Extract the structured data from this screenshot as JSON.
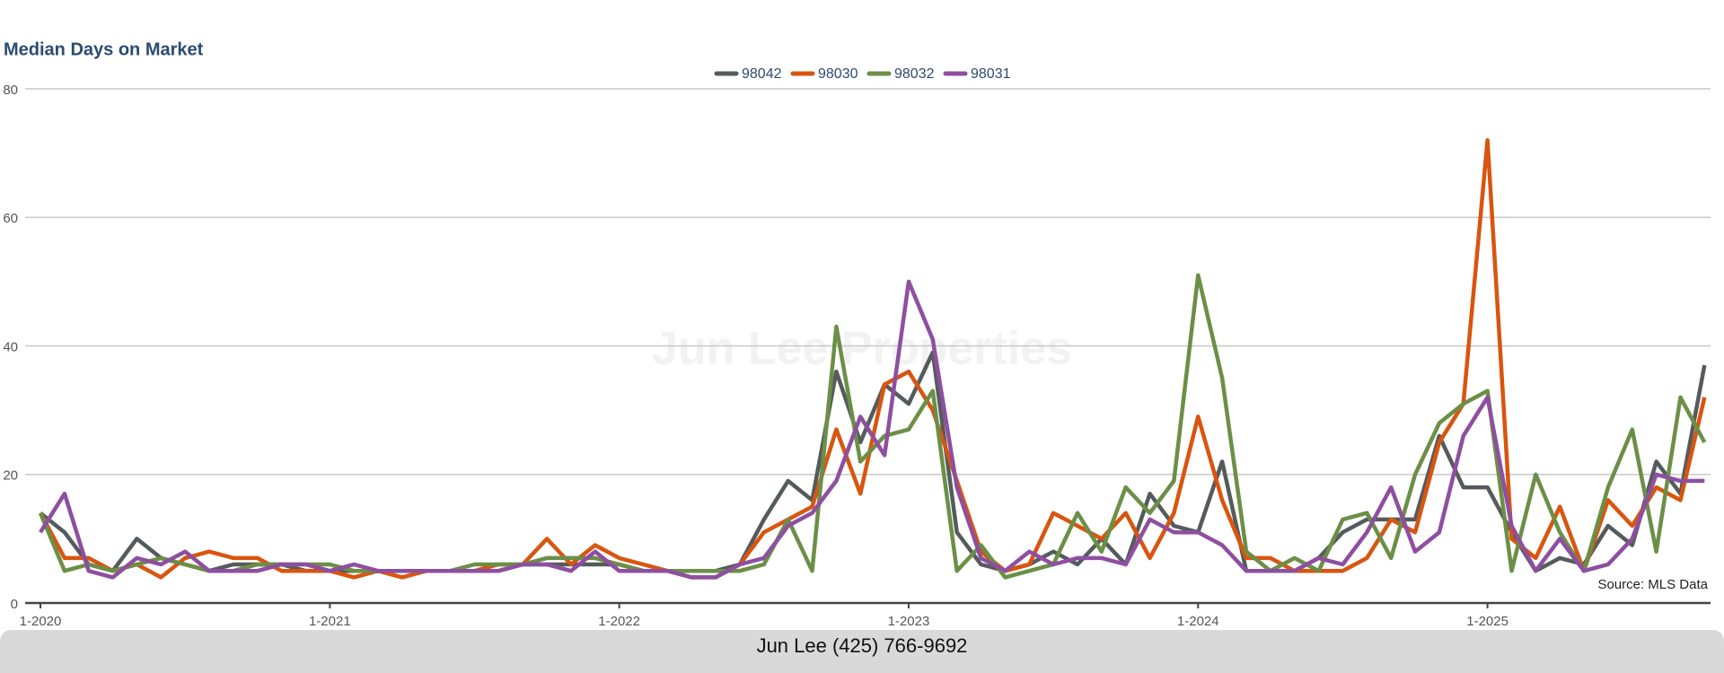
{
  "chart_data": {
    "type": "line",
    "title": "Median Days on Market",
    "watermark": "Jun Lee Properties",
    "source": "Source: MLS Data",
    "footer": "Jun Lee (425) 766-9692",
    "categories": [
      "1-2020",
      null,
      null,
      null,
      null,
      null,
      null,
      null,
      null,
      null,
      null,
      null,
      "1-2021",
      null,
      null,
      null,
      null,
      null,
      null,
      null,
      null,
      null,
      null,
      null,
      "1-2022",
      null,
      null,
      null,
      null,
      null,
      null,
      null,
      null,
      null,
      null,
      null,
      "1-2023",
      null,
      null,
      null,
      null,
      null,
      null,
      null,
      null,
      null,
      null,
      null,
      "1-2024",
      null,
      null,
      null,
      null,
      null,
      null,
      null,
      null,
      null,
      null,
      null,
      "1-2025",
      null,
      null,
      null,
      null,
      null,
      null,
      null,
      null,
      null
    ],
    "series": [
      {
        "name": "98042",
        "color": "#555b5c",
        "values": [
          14,
          11,
          6,
          5,
          10,
          7,
          6,
          5,
          6,
          6,
          6,
          5,
          5,
          5,
          5,
          5,
          5,
          5,
          5,
          5,
          6,
          6,
          6,
          6,
          6,
          5,
          5,
          5,
          5,
          6,
          13,
          19,
          16,
          36,
          25,
          34,
          31,
          39,
          11,
          6,
          5,
          6,
          8,
          6,
          10,
          6,
          17,
          12,
          11,
          22,
          5,
          5,
          5,
          7,
          11,
          13,
          13,
          13,
          26,
          18,
          18,
          11,
          5,
          7,
          6,
          12,
          9,
          22,
          17,
          37
        ]
      },
      {
        "name": "98030",
        "color": "#d9550f",
        "values": [
          14,
          7,
          7,
          5,
          6,
          4,
          7,
          8,
          7,
          7,
          5,
          5,
          5,
          4,
          5,
          4,
          5,
          5,
          5,
          6,
          6,
          10,
          6,
          9,
          7,
          6,
          5,
          4,
          4,
          6,
          11,
          13,
          15,
          27,
          17,
          34,
          36,
          30,
          19,
          8,
          5,
          6,
          14,
          12,
          10,
          14,
          7,
          14,
          29,
          16,
          7,
          7,
          5,
          5,
          5,
          7,
          13,
          11,
          25,
          31,
          72,
          10,
          7,
          15,
          5,
          16,
          12,
          18,
          16,
          32
        ]
      },
      {
        "name": "98032",
        "color": "#6b8f47",
        "values": [
          14,
          5,
          6,
          5,
          6,
          7,
          6,
          5,
          5,
          6,
          6,
          6,
          6,
          5,
          5,
          5,
          5,
          5,
          6,
          6,
          6,
          7,
          7,
          7,
          6,
          5,
          5,
          5,
          5,
          5,
          6,
          13,
          5,
          43,
          22,
          26,
          27,
          33,
          5,
          9,
          4,
          5,
          6,
          14,
          8,
          18,
          14,
          19,
          51,
          35,
          8,
          5,
          7,
          5,
          13,
          14,
          7,
          20,
          28,
          31,
          33,
          5,
          20,
          11,
          5,
          18,
          27,
          8,
          32,
          25
        ]
      },
      {
        "name": "98031",
        "color": "#8e4fa0",
        "values": [
          11,
          17,
          5,
          4,
          7,
          6,
          8,
          5,
          5,
          5,
          6,
          6,
          5,
          6,
          5,
          5,
          5,
          5,
          5,
          5,
          6,
          6,
          5,
          8,
          5,
          5,
          5,
          4,
          4,
          6,
          7,
          12,
          14,
          19,
          29,
          23,
          50,
          41,
          18,
          7,
          5,
          8,
          6,
          7,
          7,
          6,
          13,
          11,
          11,
          9,
          5,
          5,
          5,
          7,
          6,
          11,
          18,
          8,
          11,
          26,
          32,
          12,
          5,
          10,
          5,
          6,
          10,
          20,
          19,
          19
        ]
      }
    ],
    "ylim": [
      0,
      80
    ],
    "yticks": [
      0,
      20,
      40,
      60,
      80
    ],
    "grid": true,
    "legend": "top"
  }
}
